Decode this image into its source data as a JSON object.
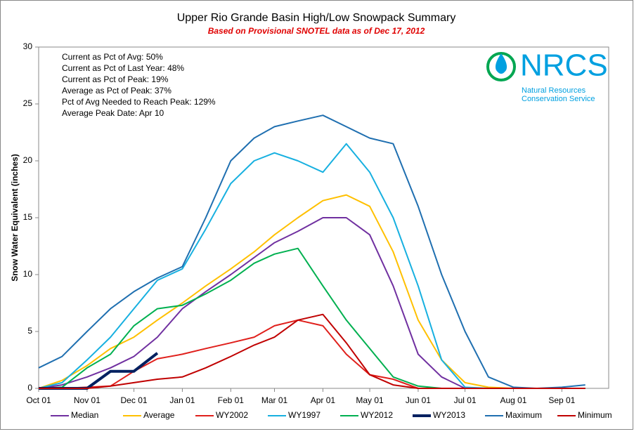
{
  "chart_data": {
    "type": "line",
    "title": "Upper Rio Grande Basin High/Low Snowpack Summary",
    "subtitle": "Based on Provisional SNOTEL data as of Dec 17, 2012",
    "y_label": "Snow Water Equivalent (inches)",
    "annotations": [
      "Current as Pct of Avg: 50%",
      "Current as Pct of Last Year: 48%",
      "Current as Pct of Peak: 19%",
      "Average as Pct of Peak: 37%",
      "Pct of Avg Needed to Reach Peak: 129%",
      "Average Peak Date: Apr 10"
    ],
    "logo": {
      "name": "NRCS",
      "line1": "Natural Resources",
      "line2": "Conservation Service"
    },
    "x": [
      "Oct 01",
      "Oct 16",
      "Nov 01",
      "Nov 16",
      "Dec 01",
      "Dec 16",
      "Jan 01",
      "Jan 16",
      "Feb 01",
      "Feb 16",
      "Mar 01",
      "Mar 16",
      "Apr 01",
      "Apr 16",
      "May 01",
      "May 16",
      "Jun 01",
      "Jun 16",
      "Jul 01",
      "Jul 16",
      "Aug 01",
      "Aug 16",
      "Sep 01",
      "Sep 16"
    ],
    "xticks": [
      "Oct 01",
      "Nov 01",
      "Dec 01",
      "Jan 01",
      "Feb 01",
      "Mar 01",
      "Apr 01",
      "May 01",
      "Jun 01",
      "Jul 01",
      "Aug 01",
      "Sep 01"
    ],
    "ylim": [
      0,
      30
    ],
    "yticks": [
      0,
      5,
      10,
      15,
      20,
      25,
      30
    ],
    "series": [
      {
        "name": "Median",
        "color": "#7030a0",
        "values": [
          0,
          0.3,
          1,
          1.8,
          2.8,
          4.5,
          7,
          8.5,
          10,
          11.5,
          12.8,
          13.8,
          15,
          15,
          13.5,
          9,
          3,
          1,
          0,
          0,
          0,
          0,
          0,
          0
        ]
      },
      {
        "name": "Average",
        "color": "#ffc000",
        "values": [
          0,
          0.7,
          2,
          3.5,
          4.5,
          6,
          7.5,
          9,
          10.5,
          12,
          13.5,
          15,
          16.5,
          17,
          16,
          12,
          6,
          2.5,
          0.5,
          0.1,
          0,
          0,
          0,
          0
        ]
      },
      {
        "name": "WY2002",
        "color": "#e0201c",
        "values": [
          0,
          0,
          0.1,
          0.2,
          1.5,
          2.6,
          3,
          3.5,
          4,
          4.5,
          5.5,
          6,
          5.5,
          3,
          1.2,
          0.8,
          0,
          0,
          0,
          0,
          0,
          0,
          0,
          0
        ]
      },
      {
        "name": "WY1997",
        "color": "#17b0e0",
        "values": [
          0,
          0.5,
          2.5,
          4.5,
          7,
          9.5,
          10.5,
          14,
          18,
          20,
          20.7,
          20,
          19,
          21.5,
          19,
          15,
          9,
          2.5,
          0.1,
          0,
          0,
          0,
          0,
          0
        ]
      },
      {
        "name": "WY2012",
        "color": "#00b050",
        "values": [
          0,
          0.1,
          1.8,
          3,
          5.5,
          7,
          7.3,
          8.3,
          9.5,
          11,
          11.8,
          12.3,
          9,
          6,
          3.5,
          1,
          0.2,
          0,
          0,
          0,
          0,
          0,
          0,
          0
        ]
      },
      {
        "name": "WY2013",
        "color": "#002060",
        "width": 4,
        "values": [
          0,
          0,
          0,
          1.5,
          1.5,
          3.1,
          null,
          null,
          null,
          null,
          null,
          null,
          null,
          null,
          null,
          null,
          null,
          null,
          null,
          null,
          null,
          null,
          null,
          null
        ]
      },
      {
        "name": "Maximum",
        "color": "#1f6fb0",
        "values": [
          1.8,
          2.8,
          5,
          7,
          8.5,
          9.7,
          10.7,
          15,
          20,
          22,
          23,
          23.5,
          24,
          23,
          22,
          21.5,
          16,
          10,
          5,
          1,
          0.1,
          0,
          0.1,
          0.3
        ]
      },
      {
        "name": "Minimum",
        "color": "#c00000",
        "values": [
          0,
          0,
          0,
          0.2,
          0.5,
          0.8,
          1,
          1.8,
          2.8,
          3.8,
          4.5,
          6,
          6.5,
          4,
          1.2,
          0.3,
          0,
          0,
          0,
          0,
          0,
          0,
          0,
          0
        ]
      }
    ]
  }
}
